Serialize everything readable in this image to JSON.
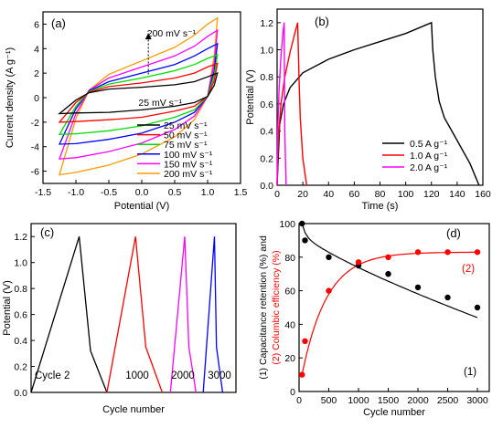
{
  "chart_data": [
    {
      "panel_label": "(a)",
      "type": "line",
      "xlabel": "Potential (V)",
      "ylabel": "Current density (A g⁻¹)",
      "xlim": [
        -1.5,
        1.5
      ],
      "ylim": [
        -7,
        7
      ],
      "xticks": [
        "-1.5",
        "-1.0",
        "-0.5",
        "0.0",
        "0.5",
        "1.0",
        "1.5"
      ],
      "yticks": [
        "-6",
        "-4",
        "-2",
        "0",
        "2",
        "4",
        "6"
      ],
      "legend_position": "bottom-right",
      "annotations": [
        {
          "text": "200 mV s⁻¹",
          "x": 0.08,
          "y": 5.0
        },
        {
          "text": "25 mV s⁻¹",
          "x": -0.05,
          "y": 0.45
        }
      ],
      "arrow": {
        "x": 0.1,
        "y_from": 1.9,
        "y_to": 5.2
      },
      "series": [
        {
          "name": "25 mV s⁻¹",
          "color": "#000000",
          "upper": [
            [
              -1.25,
              -1.3
            ],
            [
              -1.0,
              -0.2
            ],
            [
              -0.8,
              0.4
            ],
            [
              -0.5,
              0.7
            ],
            [
              0.0,
              0.85
            ],
            [
              0.5,
              1.05
            ],
            [
              0.8,
              1.3
            ],
            [
              1.0,
              1.7
            ],
            [
              1.15,
              2.0
            ]
          ],
          "lower": [
            [
              1.15,
              2.0
            ],
            [
              1.1,
              1.0
            ],
            [
              1.0,
              0.1
            ],
            [
              0.8,
              -0.4
            ],
            [
              0.5,
              -0.7
            ],
            [
              0.0,
              -1.0
            ],
            [
              -0.5,
              -1.2
            ],
            [
              -1.0,
              -1.25
            ],
            [
              -1.25,
              -1.3
            ]
          ]
        },
        {
          "name": "50 mV s⁻¹",
          "color": "#ff0000",
          "upper": [
            [
              -1.25,
              -2.0
            ],
            [
              -1.0,
              -0.4
            ],
            [
              -0.8,
              0.45
            ],
            [
              -0.5,
              0.9
            ],
            [
              0.0,
              1.2
            ],
            [
              0.5,
              1.6
            ],
            [
              0.8,
              2.0
            ],
            [
              1.0,
              2.5
            ],
            [
              1.15,
              2.8
            ]
          ],
          "lower": [
            [
              1.15,
              2.8
            ],
            [
              1.1,
              1.4
            ],
            [
              1.0,
              0.1
            ],
            [
              0.8,
              -0.7
            ],
            [
              0.5,
              -1.1
            ],
            [
              0.0,
              -1.6
            ],
            [
              -0.5,
              -1.8
            ],
            [
              -1.0,
              -1.95
            ],
            [
              -1.25,
              -2.0
            ]
          ]
        },
        {
          "name": "75 mV s⁻¹",
          "color": "#00dd00",
          "upper": [
            [
              -1.25,
              -3.0
            ],
            [
              -1.0,
              -0.7
            ],
            [
              -0.8,
              0.5
            ],
            [
              -0.5,
              1.1
            ],
            [
              0.0,
              1.6
            ],
            [
              0.5,
              2.2
            ],
            [
              0.8,
              2.7
            ],
            [
              1.0,
              3.2
            ],
            [
              1.15,
              3.5
            ]
          ],
          "lower": [
            [
              1.15,
              3.5
            ],
            [
              1.1,
              1.8
            ],
            [
              1.0,
              0.1
            ],
            [
              0.8,
              -1.0
            ],
            [
              0.5,
              -1.6
            ],
            [
              0.0,
              -2.3
            ],
            [
              -0.5,
              -2.7
            ],
            [
              -1.0,
              -2.95
            ],
            [
              -1.25,
              -3.0
            ]
          ]
        },
        {
          "name": "100 mV s⁻¹",
          "color": "#0000ff",
          "upper": [
            [
              -1.25,
              -3.8
            ],
            [
              -1.0,
              -0.9
            ],
            [
              -0.8,
              0.55
            ],
            [
              -0.5,
              1.3
            ],
            [
              0.0,
              2.0
            ],
            [
              0.5,
              2.7
            ],
            [
              0.8,
              3.4
            ],
            [
              1.0,
              4.0
            ],
            [
              1.15,
              4.4
            ]
          ],
          "lower": [
            [
              1.15,
              4.4
            ],
            [
              1.1,
              2.2
            ],
            [
              1.0,
              0.1
            ],
            [
              0.8,
              -1.2
            ],
            [
              0.5,
              -2.0
            ],
            [
              0.0,
              -2.9
            ],
            [
              -0.5,
              -3.4
            ],
            [
              -1.0,
              -3.75
            ],
            [
              -1.25,
              -3.8
            ]
          ]
        },
        {
          "name": "150 mV s⁻¹",
          "color": "#ff00ff",
          "upper": [
            [
              -1.25,
              -5.0
            ],
            [
              -1.0,
              -1.3
            ],
            [
              -0.8,
              0.6
            ],
            [
              -0.5,
              1.6
            ],
            [
              0.0,
              2.5
            ],
            [
              0.5,
              3.4
            ],
            [
              0.8,
              4.2
            ],
            [
              1.0,
              5.0
            ],
            [
              1.15,
              5.5
            ]
          ],
          "lower": [
            [
              1.15,
              5.5
            ],
            [
              1.1,
              2.8
            ],
            [
              1.0,
              0.1
            ],
            [
              0.8,
              -1.5
            ],
            [
              0.5,
              -2.6
            ],
            [
              0.0,
              -3.7
            ],
            [
              -0.5,
              -4.4
            ],
            [
              -1.0,
              -4.9
            ],
            [
              -1.25,
              -5.0
            ]
          ]
        },
        {
          "name": "200 mV s⁻¹",
          "color": "#ff9900",
          "upper": [
            [
              -1.25,
              -6.3
            ],
            [
              -1.0,
              -1.7
            ],
            [
              -0.8,
              0.6
            ],
            [
              -0.5,
              1.9
            ],
            [
              0.0,
              3.0
            ],
            [
              0.5,
              4.1
            ],
            [
              0.8,
              5.1
            ],
            [
              1.0,
              6.0
            ],
            [
              1.15,
              6.5
            ]
          ],
          "lower": [
            [
              1.15,
              6.5
            ],
            [
              1.1,
              3.4
            ],
            [
              1.0,
              0.1
            ],
            [
              0.8,
              -1.8
            ],
            [
              0.5,
              -3.2
            ],
            [
              0.0,
              -4.6
            ],
            [
              -0.5,
              -5.5
            ],
            [
              -1.0,
              -6.1
            ],
            [
              -1.25,
              -6.3
            ]
          ]
        }
      ]
    },
    {
      "panel_label": "(b)",
      "type": "line",
      "xlabel": "Time (s)",
      "ylabel": "Potential (V)",
      "xlim": [
        0,
        160
      ],
      "ylim": [
        0,
        1.3
      ],
      "xticks": [
        "0",
        "20",
        "40",
        "60",
        "80",
        "100",
        "120",
        "140",
        "160"
      ],
      "yticks": [
        "0.0",
        "0.2",
        "0.4",
        "0.6",
        "0.8",
        "1.0",
        "1.2"
      ],
      "legend_position": "bottom-right",
      "series": [
        {
          "name": "0.5 A g⁻¹",
          "color": "#000000",
          "points": [
            [
              0,
              0.0
            ],
            [
              2,
              0.45
            ],
            [
              5,
              0.6
            ],
            [
              10,
              0.72
            ],
            [
              20,
              0.83
            ],
            [
              40,
              0.93
            ],
            [
              60,
              1.0
            ],
            [
              80,
              1.06
            ],
            [
              100,
              1.12
            ],
            [
              120,
              1.2
            ],
            [
              121,
              1.0
            ],
            [
              123,
              0.8
            ],
            [
              126,
              0.62
            ],
            [
              130,
              0.5
            ],
            [
              140,
              0.33
            ],
            [
              150,
              0.16
            ],
            [
              157,
              0.0
            ]
          ]
        },
        {
          "name": "1.0 A g⁻¹",
          "color": "#ff0000",
          "points": [
            [
              0,
              0.0
            ],
            [
              1,
              0.35
            ],
            [
              3,
              0.6
            ],
            [
              6,
              0.8
            ],
            [
              10,
              0.98
            ],
            [
              14,
              1.13
            ],
            [
              16,
              1.2
            ],
            [
              17,
              0.8
            ],
            [
              18,
              0.5
            ],
            [
              20,
              0.2
            ],
            [
              23,
              0.0
            ]
          ]
        },
        {
          "name": "2.0 A g⁻¹",
          "color": "#ff00ff",
          "points": [
            [
              0,
              0.0
            ],
            [
              0.5,
              0.4
            ],
            [
              1.5,
              0.7
            ],
            [
              3,
              0.95
            ],
            [
              4.5,
              1.12
            ],
            [
              5.5,
              1.2
            ],
            [
              6,
              0.4
            ],
            [
              7,
              0.0
            ]
          ]
        }
      ]
    },
    {
      "panel_label": "(c)",
      "type": "line",
      "xlabel": "Cycle number",
      "ylabel": "Potential (V)",
      "xlim": [
        0,
        1
      ],
      "ylim": [
        0,
        1.3
      ],
      "yticks": [
        "0.0",
        "0.2",
        "0.4",
        "0.6",
        "0.8",
        "1.0",
        "1.2"
      ],
      "annotations": [
        "Cycle 2",
        "1000",
        "2000",
        "3000"
      ],
      "series": [
        {
          "name": "Cycle 2",
          "color": "#000000",
          "points": [
            [
              0,
              0.0
            ],
            [
              0.235,
              1.2
            ],
            [
              0.29,
              0.32
            ],
            [
              0.37,
              0.0
            ]
          ]
        },
        {
          "name": "1000",
          "color": "#ff0000",
          "points": [
            [
              0.37,
              0.0
            ],
            [
              0.51,
              1.2
            ],
            [
              0.56,
              0.35
            ],
            [
              0.64,
              0.0
            ]
          ]
        },
        {
          "name": "2000",
          "color": "#ff00ff",
          "points": [
            [
              0.68,
              0.0
            ],
            [
              0.75,
              1.2
            ],
            [
              0.77,
              0.35
            ],
            [
              0.805,
              0.0
            ]
          ]
        },
        {
          "name": "3000",
          "color": "#0000ff",
          "points": [
            [
              0.84,
              0.0
            ],
            [
              0.895,
              1.2
            ],
            [
              0.905,
              0.35
            ],
            [
              0.935,
              0.0
            ]
          ]
        }
      ]
    },
    {
      "panel_label": "(d)",
      "type": "scatter",
      "xlabel": "Cycle number",
      "ylabel_line1": "(1) Capacitance retention (%) and",
      "ylabel_line2": "(2) Columbic efficiency (%)",
      "xlim": [
        0,
        3200
      ],
      "ylim": [
        0,
        100
      ],
      "xticks": [
        "0",
        "500",
        "1000",
        "1500",
        "2000",
        "2500",
        "3000"
      ],
      "yticks": [
        "0",
        "20",
        "40",
        "60",
        "80",
        "100"
      ],
      "series": [
        {
          "name": "(1)",
          "color": "#000000",
          "x": [
            50,
            100,
            500,
            1000,
            1500,
            2000,
            2500,
            3000
          ],
          "y": [
            100,
            90,
            80,
            75,
            70,
            62,
            56,
            50
          ]
        },
        {
          "name": "(2)",
          "color": "#ff0000",
          "x": [
            50,
            100,
            500,
            1000,
            1500,
            2000,
            2500,
            3000
          ],
          "y": [
            10,
            30,
            60,
            77,
            80,
            83,
            83,
            83
          ]
        }
      ]
    }
  ]
}
